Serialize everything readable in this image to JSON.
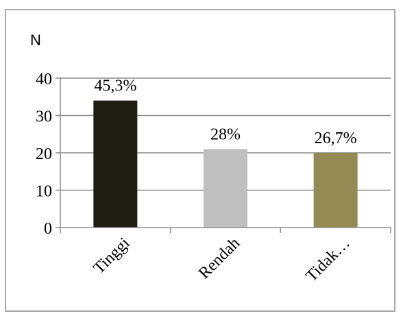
{
  "chart_data": {
    "type": "bar",
    "ylabel": "N",
    "categories": [
      "Tinggi",
      "Rendah",
      "Tidak…"
    ],
    "values": [
      34,
      21,
      20
    ],
    "data_labels": [
      "45,3%",
      "28%",
      "26,7%"
    ],
    "colors": [
      "#1f1c12",
      "#bfbfbf",
      "#948a54"
    ],
    "ylim": [
      0,
      40
    ],
    "yticks": [
      "0",
      "10",
      "20",
      "30",
      "40"
    ],
    "grid": true,
    "legend": "none"
  }
}
